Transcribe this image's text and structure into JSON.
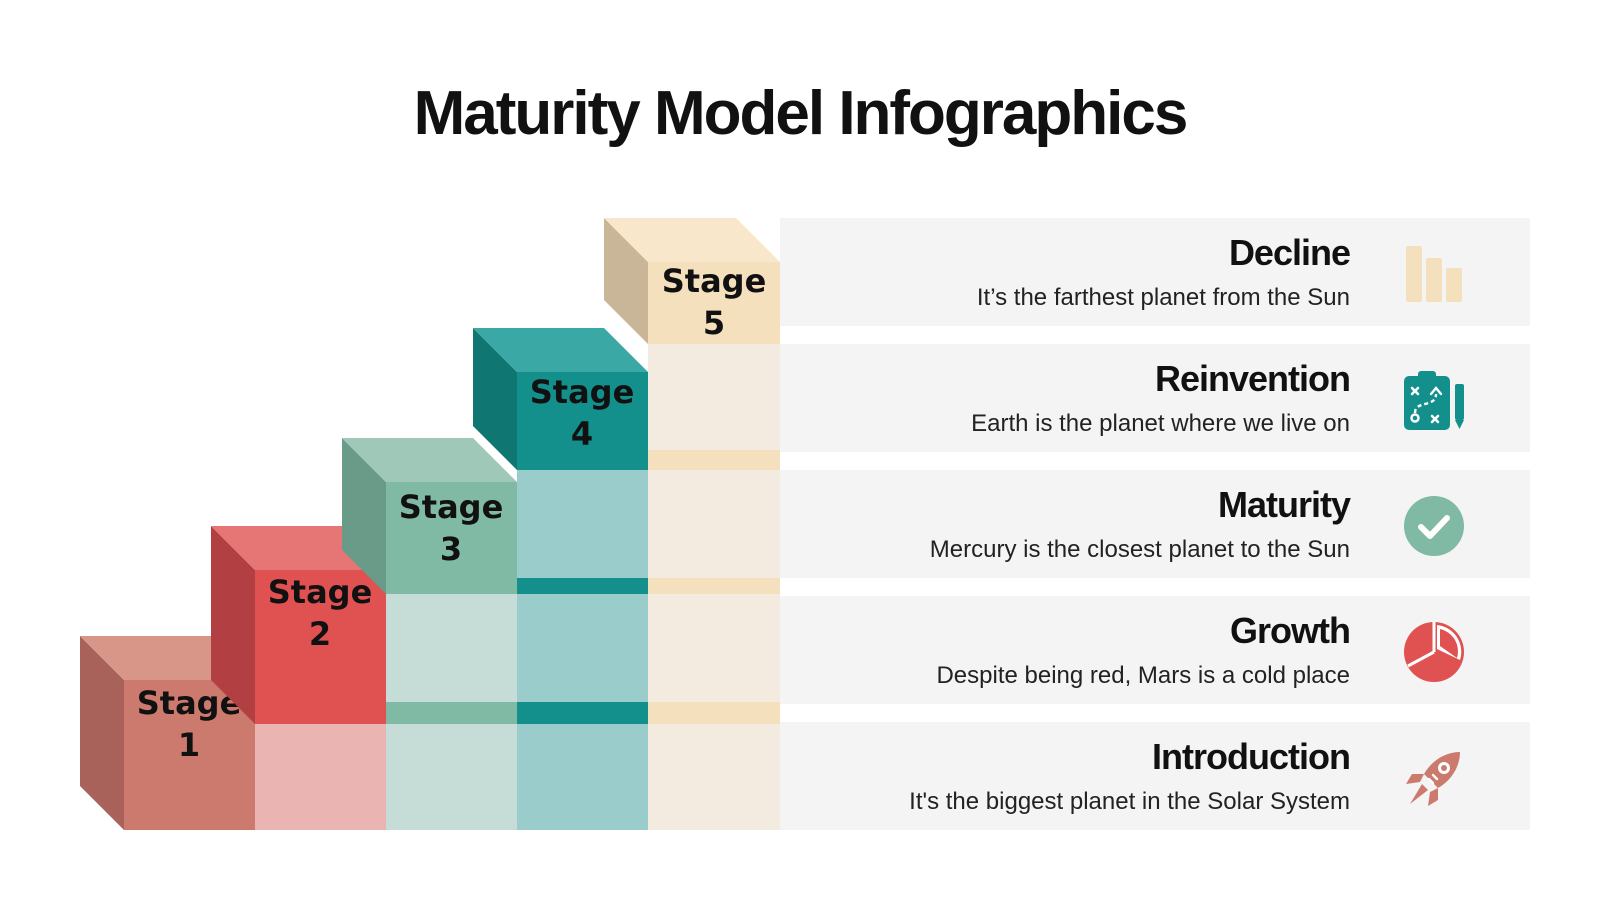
{
  "title": "Maturity Model Infographics",
  "stages": [
    {
      "word": "Stage",
      "number": "1",
      "color": "#cd7a6e"
    },
    {
      "word": "Stage",
      "number": "2",
      "color": "#e05151"
    },
    {
      "word": "Stage",
      "number": "3",
      "color": "#80b9a4"
    },
    {
      "word": "Stage",
      "number": "4",
      "color": "#13908c"
    },
    {
      "word": "Stage",
      "number": "5",
      "color": "#f5e0bd"
    }
  ],
  "phases": [
    {
      "heading": "Decline",
      "description": "It’s the farthest planet from the Sun",
      "icon": "bar-chart-icon",
      "color": "#f5e0bd"
    },
    {
      "heading": "Reinvention",
      "description": "Earth is the planet where we live on",
      "icon": "strategy-clipboard-icon",
      "color": "#13908c"
    },
    {
      "heading": "Maturity",
      "description": "Mercury is the closest planet to the Sun",
      "icon": "check-circle-icon",
      "color": "#80b9a4"
    },
    {
      "heading": "Growth",
      "description": "Despite being red, Mars is a cold place",
      "icon": "pie-chart-icon",
      "color": "#e05151"
    },
    {
      "heading": "Introduction",
      "description": "It's the biggest planet in the Solar System",
      "icon": "rocket-icon",
      "color": "#cd7a6e"
    }
  ]
}
